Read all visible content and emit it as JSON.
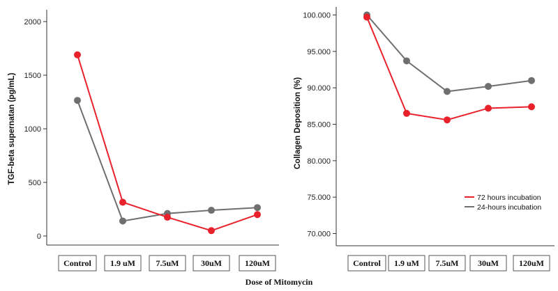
{
  "x_title": "Dose of Mitomycin",
  "colors": {
    "series_72": "#e8212b",
    "series_24": "#6f6f6f",
    "axis": "#333333",
    "box": "#555555"
  },
  "chart_data": [
    {
      "type": "line",
      "title": "",
      "ylabel": "TGF-beta supernatan (pg/mL)",
      "ylim": [
        -50,
        2100
      ],
      "yticks": [
        "0",
        "500",
        "1000",
        "1500",
        "2000"
      ],
      "categories": [
        "Control",
        "1.9 uM",
        "7.5uM",
        "30uM",
        "120uM"
      ],
      "series": [
        {
          "name": "72 hours incubation",
          "color": "#e8212b",
          "values": [
            1690,
            315,
            175,
            50,
            200
          ]
        },
        {
          "name": "24-hours incubation",
          "color": "#6f6f6f",
          "values": [
            1265,
            140,
            210,
            240,
            265
          ]
        }
      ]
    },
    {
      "type": "line",
      "title": "",
      "ylabel": "Collagen Deposition (%)",
      "ylim": [
        68.5,
        100.7
      ],
      "yticks": [
        "70.000",
        "75.000",
        "80.000",
        "85.000",
        "90.000",
        "95.000",
        "100.000"
      ],
      "categories": [
        "Control",
        "1.9 uM",
        "7.5uM",
        "30uM",
        "120uM"
      ],
      "legend_position": "bottom-right",
      "series": [
        {
          "name": "72 hours incubation",
          "color": "#e8212b",
          "values": [
            99.7,
            86.5,
            85.6,
            87.2,
            87.4
          ]
        },
        {
          "name": "24-hours incubation",
          "color": "#6f6f6f",
          "values": [
            100.0,
            93.7,
            89.5,
            90.2,
            91.0
          ]
        }
      ]
    }
  ]
}
